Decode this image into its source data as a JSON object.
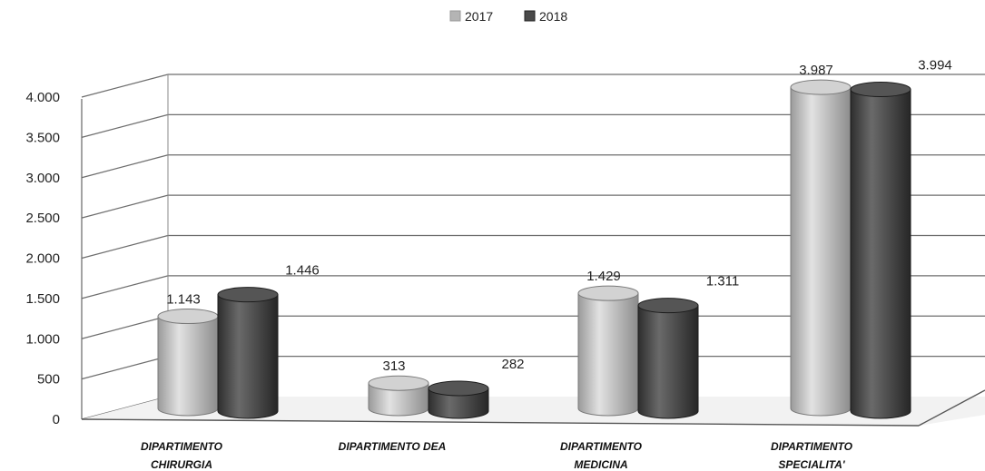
{
  "chart_data": {
    "type": "bar",
    "categories": [
      [
        "DIPARTIMENTO",
        "CHIRURGIA"
      ],
      [
        "DIPARTIMENTO DEA"
      ],
      [
        "DIPARTIMENTO",
        "MEDICINA"
      ],
      [
        "DIPARTIMENTO",
        "SPECIALITA'"
      ]
    ],
    "series": [
      {
        "name": "2017",
        "values": [
          1143,
          313,
          1429,
          3987
        ],
        "labels": [
          "1.143",
          "313",
          "1.429",
          "3.987"
        ],
        "color": "#b4b4b4"
      },
      {
        "name": "2018",
        "values": [
          1446,
          282,
          1311,
          3994
        ],
        "labels": [
          "1.446",
          "282",
          "1.311",
          "3.994"
        ],
        "color": "#4a4a4a"
      }
    ],
    "yticks": [
      0,
      500,
      1000,
      1500,
      2000,
      2500,
      3000,
      3500,
      4000
    ],
    "ytick_labels": [
      "0",
      "500",
      "1.000",
      "1.500",
      "2.000",
      "2.500",
      "3.000",
      "3.500",
      "4.000"
    ],
    "ylim": [
      0,
      4000
    ],
    "grid": true,
    "legend_position": "top-center",
    "style": "3d-cylinder"
  }
}
